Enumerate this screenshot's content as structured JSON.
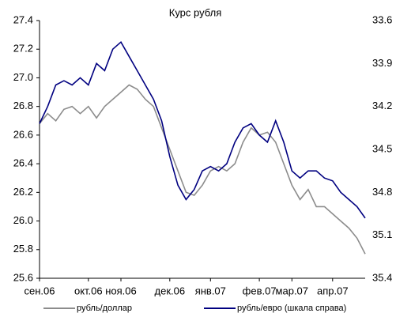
{
  "chart_data": {
    "type": "line",
    "title": "Курс рубля",
    "categories": [
      "сен.06",
      null,
      null,
      null,
      null,
      null,
      "окт.06",
      null,
      null,
      null,
      "ноя.06",
      null,
      null,
      null,
      null,
      null,
      "дек.06",
      null,
      null,
      null,
      null,
      "янв.07",
      null,
      null,
      null,
      null,
      null,
      "фев.07",
      null,
      null,
      null,
      "мар.07",
      null,
      null,
      null,
      null,
      "апр.07",
      null,
      null,
      null,
      null
    ],
    "series": [
      {
        "name": "рубль/доллар",
        "color": "#8c8c8c",
        "axis": "y",
        "values": [
          26.68,
          26.75,
          26.7,
          26.78,
          26.8,
          26.75,
          26.8,
          26.72,
          26.8,
          26.85,
          26.9,
          26.95,
          26.92,
          26.85,
          26.8,
          26.65,
          26.5,
          26.35,
          26.2,
          26.18,
          26.25,
          26.35,
          26.38,
          26.35,
          26.4,
          26.55,
          26.65,
          26.6,
          26.62,
          26.55,
          26.4,
          26.25,
          26.15,
          26.22,
          26.1,
          26.1,
          26.05,
          26.0,
          25.95,
          25.88,
          25.77
        ]
      },
      {
        "name": "рубль/евро (шкала справа)",
        "color": "#000080",
        "axis": "y2",
        "values": [
          34.32,
          34.2,
          34.05,
          34.02,
          34.05,
          34.0,
          34.05,
          33.9,
          33.95,
          33.8,
          33.75,
          33.85,
          33.95,
          34.05,
          34.15,
          34.3,
          34.55,
          34.75,
          34.85,
          34.78,
          34.65,
          34.62,
          34.65,
          34.6,
          34.45,
          34.35,
          34.32,
          34.4,
          34.45,
          34.3,
          34.45,
          34.65,
          34.7,
          34.65,
          34.65,
          34.7,
          34.72,
          34.8,
          34.85,
          34.9,
          34.98
        ]
      }
    ],
    "ylim": [
      25.6,
      27.4
    ],
    "yticks": [
      25.6,
      25.8,
      {
        "value": 26,
        "label": "26.0"
      },
      26.2,
      26.4,
      26.6,
      26.8,
      {
        "value": 27,
        "label": "27.0"
      },
      27.2,
      27.4
    ],
    "y2lim": [
      35.4,
      33.6
    ],
    "y2ticks": [
      33.6,
      33.9,
      34.2,
      34.5,
      34.8,
      35.1,
      35.4
    ],
    "y2_inverted": true,
    "grid": false,
    "legend": "bottom"
  }
}
